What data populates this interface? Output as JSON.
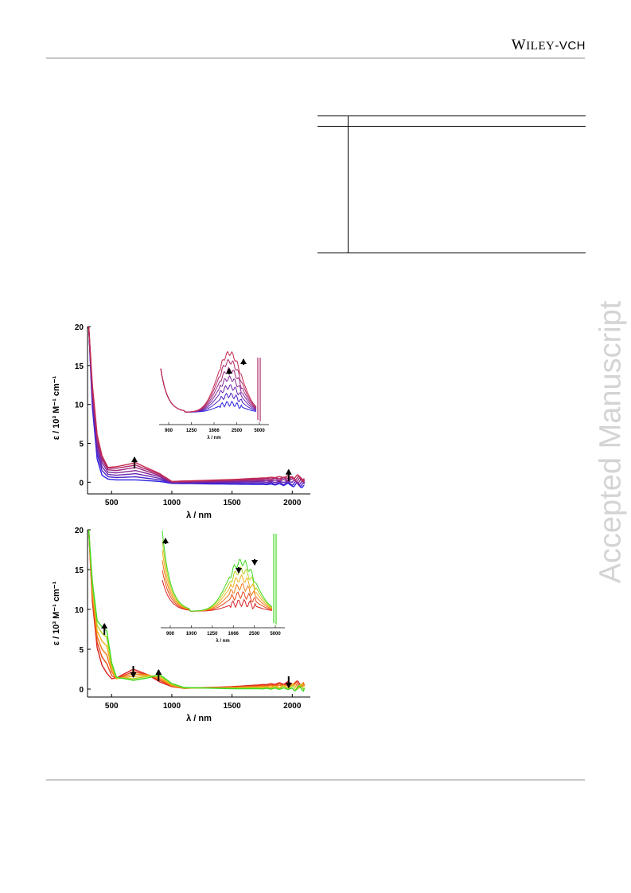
{
  "header": {
    "publisher_w": "W",
    "publisher_iley": "ILEY",
    "publisher_dash_vch": "-VCH"
  },
  "watermark": "Accepted Manuscript",
  "chart_data": [
    {
      "type": "line",
      "id": "top",
      "xlabel": "λ / nm",
      "ylabel": "ε / 10³ M⁻¹ cm⁻¹",
      "xlim": [
        300,
        2150
      ],
      "ylim": [
        -1.5,
        20
      ],
      "xticks": [
        500,
        1000,
        1500,
        2000
      ],
      "yticks": [
        0,
        5,
        10,
        15,
        20
      ],
      "arrows": [
        {
          "x": 690,
          "y": 3.2,
          "dir": "up"
        },
        {
          "x": 1970,
          "y": 1.6,
          "dir": "up"
        }
      ],
      "series": [
        {
          "color": "#2b20e0",
          "values": [
            [
              310,
              20
            ],
            [
              340,
              9.6
            ],
            [
              380,
              3.0
            ],
            [
              420,
              0.9
            ],
            [
              470,
              0.4
            ],
            [
              540,
              0.3
            ],
            [
              700,
              0.3
            ],
            [
              900,
              0.1
            ],
            [
              1000,
              -0.15
            ],
            [
              1500,
              -0.25
            ],
            [
              2000,
              -0.3
            ],
            [
              2100,
              -0.4
            ]
          ]
        },
        {
          "color": "#4a22c8",
          "values": [
            [
              310,
              20
            ],
            [
              340,
              10.2
            ],
            [
              380,
              3.7
            ],
            [
              420,
              1.5
            ],
            [
              470,
              0.7
            ],
            [
              540,
              0.6
            ],
            [
              700,
              0.7
            ],
            [
              900,
              0.3
            ],
            [
              1000,
              -0.1
            ],
            [
              1500,
              -0.15
            ],
            [
              2000,
              -0.15
            ],
            [
              2100,
              -0.25
            ]
          ]
        },
        {
          "color": "#6824b0",
          "values": [
            [
              310,
              20
            ],
            [
              340,
              10.8
            ],
            [
              380,
              4.3
            ],
            [
              420,
              2.0
            ],
            [
              470,
              1.0
            ],
            [
              540,
              0.9
            ],
            [
              700,
              1.1
            ],
            [
              900,
              0.5
            ],
            [
              1000,
              -0.05
            ],
            [
              1500,
              0.0
            ],
            [
              2000,
              0.05
            ],
            [
              2100,
              -0.1
            ]
          ]
        },
        {
          "color": "#842898",
          "values": [
            [
              310,
              20
            ],
            [
              340,
              11.3
            ],
            [
              380,
              4.9
            ],
            [
              420,
              2.5
            ],
            [
              470,
              1.3
            ],
            [
              540,
              1.2
            ],
            [
              700,
              1.5
            ],
            [
              900,
              0.7
            ],
            [
              1000,
              0.0
            ],
            [
              1500,
              0.1
            ],
            [
              2000,
              0.25
            ],
            [
              2100,
              0.05
            ]
          ]
        },
        {
          "color": "#9c2a80",
          "values": [
            [
              310,
              20
            ],
            [
              340,
              11.8
            ],
            [
              380,
              5.4
            ],
            [
              420,
              2.9
            ],
            [
              470,
              1.6
            ],
            [
              540,
              1.5
            ],
            [
              700,
              1.9
            ],
            [
              900,
              0.85
            ],
            [
              1000,
              0.05
            ],
            [
              1500,
              0.2
            ],
            [
              2000,
              0.45
            ],
            [
              2100,
              0.2
            ]
          ]
        },
        {
          "color": "#b02a68",
          "values": [
            [
              310,
              20
            ],
            [
              340,
              12.2
            ],
            [
              380,
              5.8
            ],
            [
              420,
              3.2
            ],
            [
              470,
              1.8
            ],
            [
              540,
              1.8
            ],
            [
              700,
              2.2
            ],
            [
              900,
              1.0
            ],
            [
              1000,
              0.1
            ],
            [
              1500,
              0.3
            ],
            [
              2000,
              0.6
            ],
            [
              2100,
              0.35
            ]
          ]
        },
        {
          "color": "#c52a50",
          "values": [
            [
              310,
              20
            ],
            [
              340,
              12.5
            ],
            [
              380,
              6.1
            ],
            [
              420,
              3.4
            ],
            [
              470,
              1.9
            ],
            [
              540,
              2.0
            ],
            [
              700,
              2.5
            ],
            [
              900,
              1.1
            ],
            [
              1000,
              0.1
            ],
            [
              1500,
              0.35
            ],
            [
              2000,
              0.75
            ],
            [
              2100,
              0.5
            ]
          ]
        }
      ],
      "inset": {
        "xticks": [
          900,
          1250,
          1666,
          2500,
          5000
        ],
        "xlabel": "λ / nm",
        "arrows": [
          {
            "x": 2000,
            "dir": "up"
          },
          {
            "x": 2800,
            "dir": "up"
          }
        ]
      }
    },
    {
      "type": "line",
      "id": "bottom",
      "xlabel": "λ / nm",
      "ylabel": "ε / 10³ M⁻¹ cm⁻¹",
      "xlim": [
        300,
        2150
      ],
      "ylim": [
        -1.0,
        20
      ],
      "xticks": [
        500,
        1000,
        1500,
        2000
      ],
      "yticks": [
        0,
        5,
        10,
        15,
        20
      ],
      "arrows": [
        {
          "x": 440,
          "y": 8.2,
          "dir": "up"
        },
        {
          "x": 680,
          "y": 2.9,
          "dir": "down"
        },
        {
          "x": 890,
          "y": 2.4,
          "dir": "up"
        },
        {
          "x": 1970,
          "y": 1.6,
          "dir": "down"
        }
      ],
      "series": [
        {
          "color": "#d82020",
          "values": [
            [
              310,
              20
            ],
            [
              340,
              11.0
            ],
            [
              380,
              5.2
            ],
            [
              420,
              3.0
            ],
            [
              460,
              2.0
            ],
            [
              500,
              1.3
            ],
            [
              540,
              1.4
            ],
            [
              680,
              2.5
            ],
            [
              800,
              1.8
            ],
            [
              900,
              0.9
            ],
            [
              1000,
              0.3
            ],
            [
              1100,
              0.1
            ],
            [
              1500,
              0.3
            ],
            [
              2000,
              0.8
            ],
            [
              2100,
              0.6
            ]
          ]
        },
        {
          "color": "#e84818",
          "values": [
            [
              310,
              20
            ],
            [
              340,
              11.5
            ],
            [
              380,
              5.9
            ],
            [
              420,
              4.0
            ],
            [
              460,
              3.2
            ],
            [
              500,
              1.7
            ],
            [
              540,
              1.3
            ],
            [
              680,
              2.2
            ],
            [
              800,
              1.8
            ],
            [
              900,
              1.1
            ],
            [
              1000,
              0.35
            ],
            [
              1100,
              0.1
            ],
            [
              1500,
              0.25
            ],
            [
              2000,
              0.65
            ],
            [
              2100,
              0.5
            ]
          ]
        },
        {
          "color": "#f07818",
          "values": [
            [
              310,
              20
            ],
            [
              340,
              12.0
            ],
            [
              380,
              6.6
            ],
            [
              420,
              5.0
            ],
            [
              460,
              4.3
            ],
            [
              500,
              2.2
            ],
            [
              540,
              1.3
            ],
            [
              680,
              1.9
            ],
            [
              800,
              1.8
            ],
            [
              900,
              1.3
            ],
            [
              1000,
              0.4
            ],
            [
              1100,
              0.1
            ],
            [
              1500,
              0.2
            ],
            [
              2000,
              0.5
            ],
            [
              2100,
              0.4
            ]
          ]
        },
        {
          "color": "#f0b020",
          "values": [
            [
              310,
              20
            ],
            [
              340,
              12.5
            ],
            [
              380,
              7.3
            ],
            [
              420,
              6.0
            ],
            [
              460,
              5.4
            ],
            [
              500,
              2.6
            ],
            [
              540,
              1.3
            ],
            [
              680,
              1.6
            ],
            [
              800,
              1.7
            ],
            [
              900,
              1.5
            ],
            [
              1000,
              0.5
            ],
            [
              1100,
              0.15
            ],
            [
              1500,
              0.15
            ],
            [
              2000,
              0.35
            ],
            [
              2100,
              0.3
            ]
          ]
        },
        {
          "color": "#b8d020",
          "values": [
            [
              310,
              20
            ],
            [
              340,
              13.0
            ],
            [
              380,
              8.0
            ],
            [
              420,
              7.0
            ],
            [
              460,
              6.5
            ],
            [
              500,
              3.0
            ],
            [
              540,
              1.4
            ],
            [
              680,
              1.3
            ],
            [
              800,
              1.6
            ],
            [
              900,
              1.7
            ],
            [
              1000,
              0.6
            ],
            [
              1100,
              0.15
            ],
            [
              1500,
              0.1
            ],
            [
              2000,
              0.2
            ],
            [
              2100,
              0.2
            ]
          ]
        },
        {
          "color": "#40d820",
          "values": [
            [
              310,
              20
            ],
            [
              340,
              13.5
            ],
            [
              380,
              8.6
            ],
            [
              420,
              7.8
            ],
            [
              460,
              7.3
            ],
            [
              500,
              3.3
            ],
            [
              540,
              1.5
            ],
            [
              680,
              1.1
            ],
            [
              800,
              1.4
            ],
            [
              900,
              1.8
            ],
            [
              1000,
              0.7
            ],
            [
              1100,
              0.2
            ],
            [
              1500,
              0.05
            ],
            [
              2000,
              0.05
            ],
            [
              2100,
              0.1
            ]
          ]
        }
      ],
      "inset": {
        "xticks": [
          900,
          1000,
          1250,
          1666,
          2500,
          5000
        ],
        "xlabel": "λ / nm",
        "arrows": [
          {
            "x": 960,
            "dir": "up"
          },
          {
            "x": 2200,
            "dir": "down"
          },
          {
            "x": 2900,
            "dir": "down"
          }
        ]
      }
    }
  ]
}
